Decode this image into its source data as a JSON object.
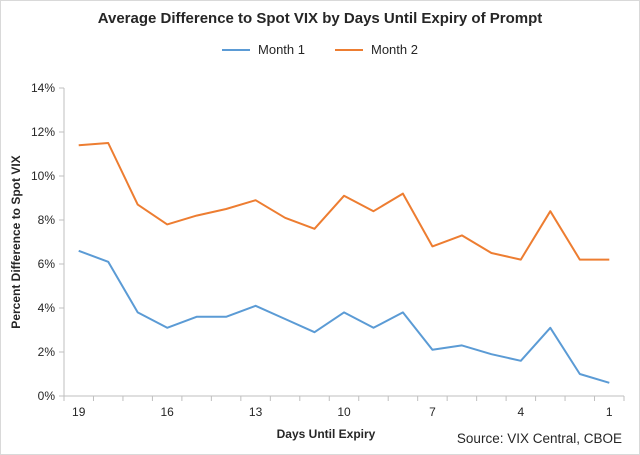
{
  "chart_data": {
    "type": "line",
    "title": "Average Difference to Spot VIX by Days Until Expiry of Prompt",
    "xlabel": "Days Until Expiry",
    "ylabel": "Percent Difference to Spot VIX",
    "x": [
      19,
      18,
      17,
      16,
      15,
      14,
      13,
      12,
      11,
      10,
      9,
      8,
      7,
      6,
      5,
      4,
      3,
      2,
      1
    ],
    "x_tick_labels": [
      "19",
      "16",
      "13",
      "10",
      "7",
      "4",
      "1"
    ],
    "y_tick_labels": [
      "0%",
      "2%",
      "4%",
      "6%",
      "8%",
      "10%",
      "12%",
      "14%"
    ],
    "ylim": [
      0,
      14
    ],
    "grid": false,
    "legend_position": "top",
    "series": [
      {
        "name": "Month 1",
        "color": "#5b9bd5",
        "values": [
          6.6,
          6.1,
          3.8,
          3.1,
          3.6,
          3.6,
          4.1,
          3.5,
          2.9,
          3.8,
          3.1,
          3.8,
          2.1,
          2.3,
          1.9,
          1.6,
          3.1,
          1.0,
          0.6
        ]
      },
      {
        "name": "Month 2",
        "color": "#ed7d31",
        "values": [
          11.4,
          11.5,
          8.7,
          7.8,
          8.2,
          8.5,
          8.9,
          8.1,
          7.6,
          9.1,
          8.4,
          9.2,
          6.8,
          7.3,
          6.5,
          6.2,
          8.4,
          6.2,
          6.2
        ]
      }
    ],
    "source": "Source: VIX Central, CBOE"
  }
}
